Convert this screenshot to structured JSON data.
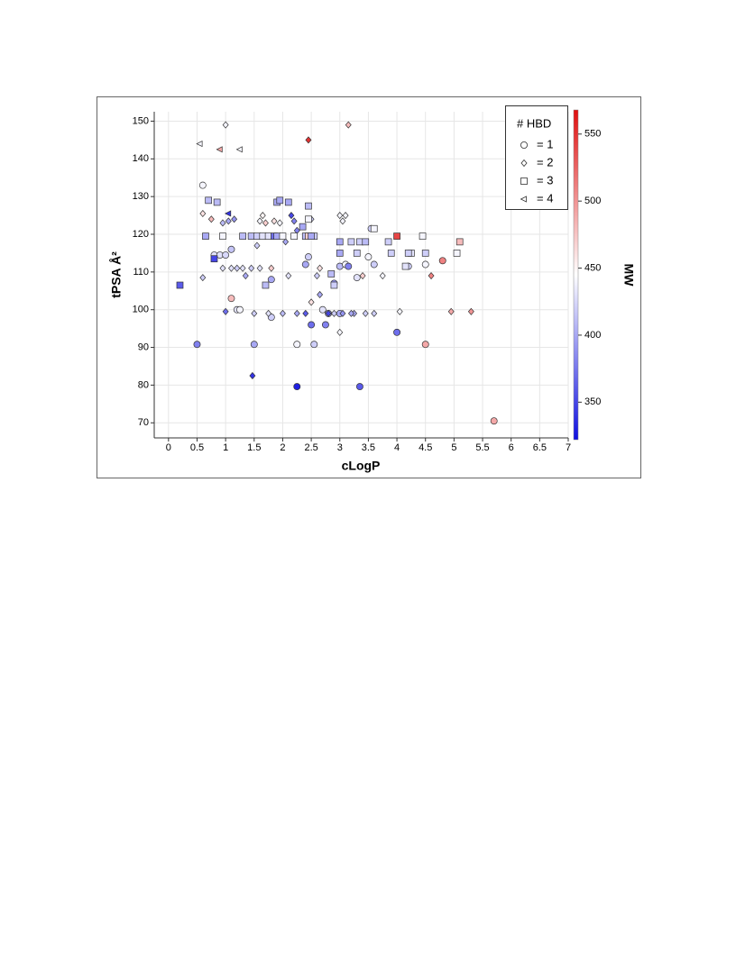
{
  "chart_data": {
    "type": "scatter",
    "x_label": "cLogP",
    "y_label": "tPSA Å²",
    "xlim": [
      -0.25,
      7
    ],
    "xticks": [
      0,
      0.5,
      1,
      1.5,
      2,
      2.5,
      3,
      3.5,
      4,
      4.5,
      5,
      5.5,
      6,
      6.5,
      7
    ],
    "ylim": [
      66,
      152.5
    ],
    "yticks": [
      70,
      80,
      90,
      100,
      110,
      120,
      130,
      140,
      150
    ],
    "grid": true,
    "colorbar": {
      "label": "MW",
      "lim": [
        322,
        568
      ],
      "ticks": [
        350,
        400,
        450,
        500,
        550
      ],
      "colors": [
        "#1010e0",
        "#ffffff",
        "#e01010"
      ]
    },
    "legend_title": "# HBD",
    "legend_position": "upper right",
    "series": [
      {
        "name": "= 1",
        "marker": "circle",
        "x": [
          0.6,
          0.5,
          0.8,
          0.9,
          1.0,
          1.1,
          1.1,
          1.2,
          1.25,
          1.5,
          1.8,
          1.8,
          2.25,
          2.25,
          2.4,
          2.45,
          2.5,
          2.55,
          2.7,
          2.75,
          2.9,
          3.0,
          3.0,
          3.1,
          3.15,
          3.35,
          3.5,
          3.55,
          3.6,
          4.0,
          4.2,
          4.5,
          4.5,
          4.8,
          5.7,
          2.8,
          3.3
        ],
        "values": [
          133,
          90.8,
          114.5,
          114.5,
          114.5,
          116,
          103,
          100,
          100,
          90.8,
          108,
          98,
          90.8,
          79.6,
          112,
          114,
          96,
          90.8,
          100,
          96,
          107,
          111.5,
          99,
          112,
          111.5,
          79.6,
          114,
          121.5,
          112,
          94,
          111.5,
          112,
          90.8,
          113,
          70.5,
          99,
          108.5
        ],
        "mw": [
          440,
          380,
          430,
          430,
          425,
          415,
          480,
          430,
          440,
          400,
          400,
          420,
          440,
          330,
          400,
          420,
          370,
          420,
          430,
          380,
          390,
          410,
          400,
          440,
          380,
          360,
          440,
          420,
          420,
          370,
          420,
          440,
          490,
          510,
          490,
          400,
          430
        ]
      },
      {
        "name": "= 2",
        "marker": "diamond",
        "x": [
          0.6,
          0.6,
          0.75,
          0.95,
          0.95,
          1.0,
          1.0,
          1.05,
          1.1,
          1.15,
          1.2,
          1.3,
          1.35,
          1.45,
          1.5,
          1.55,
          1.6,
          1.65,
          1.7,
          1.6,
          1.75,
          1.8,
          1.85,
          1.95,
          2.0,
          2.05,
          2.1,
          2.15,
          2.2,
          2.25,
          2.25,
          2.4,
          2.45,
          2.5,
          2.5,
          2.6,
          2.65,
          2.65,
          1.47,
          2.8,
          2.9,
          3.0,
          3.0,
          3.05,
          3.1,
          3.15,
          3.25,
          3.4,
          3.45,
          3.6,
          3.75,
          4.05,
          4.6,
          4.95,
          5.3,
          3.05,
          3.2
        ],
        "values": [
          125.5,
          108.5,
          124,
          123,
          111,
          149,
          99.5,
          123.5,
          111,
          124,
          111,
          111,
          109,
          111,
          99,
          117,
          123.5,
          125,
          123,
          111,
          99,
          111,
          123.5,
          123,
          99,
          118,
          109,
          125,
          123.5,
          121,
          99,
          99,
          145,
          102,
          124,
          109,
          104,
          111,
          82.5,
          99,
          99,
          94,
          125,
          123.5,
          125,
          149,
          99,
          109,
          99,
          99,
          109,
          99.5,
          109,
          99.5,
          99.5,
          99,
          99
        ],
        "mw": [
          460,
          420,
          480,
          410,
          430,
          440,
          370,
          400,
          430,
          390,
          420,
          430,
          400,
          420,
          420,
          420,
          440,
          450,
          470,
          430,
          430,
          470,
          460,
          440,
          410,
          400,
          430,
          350,
          380,
          380,
          400,
          360,
          550,
          460,
          420,
          420,
          400,
          460,
          340,
          350,
          420,
          440,
          440,
          440,
          440,
          480,
          400,
          470,
          420,
          420,
          440,
          440,
          510,
          490,
          500,
          390,
          400
        ]
      },
      {
        "name": "= 3",
        "marker": "square",
        "x": [
          0.2,
          0.65,
          0.7,
          0.8,
          0.85,
          0.95,
          1.3,
          1.45,
          1.55,
          1.65,
          1.7,
          1.75,
          1.85,
          1.9,
          1.95,
          1.9,
          2.0,
          2.1,
          2.2,
          2.35,
          2.4,
          2.45,
          2.45,
          2.45,
          2.55,
          2.85,
          2.9,
          3.0,
          3.0,
          3.2,
          3.3,
          3.35,
          3.45,
          3.6,
          3.85,
          3.9,
          4.0,
          4.15,
          4.25,
          4.2,
          4.45,
          4.5,
          5.05,
          5.1,
          2.5
        ],
        "values": [
          106.5,
          119.5,
          129,
          113.5,
          128.5,
          119.5,
          119.5,
          119.5,
          119.5,
          119.5,
          106.5,
          119.5,
          119.5,
          128.5,
          129,
          119.5,
          119.5,
          128.5,
          119.5,
          122,
          119.5,
          127.5,
          124,
          119.5,
          119.5,
          109.5,
          106.5,
          118,
          115,
          118,
          115,
          118,
          118,
          121.5,
          118,
          115,
          119.5,
          111.5,
          115,
          115,
          119.5,
          115,
          115,
          118,
          119.5
        ],
        "mw": [
          360,
          400,
          410,
          350,
          410,
          440,
          410,
          410,
          420,
          430,
          410,
          430,
          370,
          400,
          400,
          400,
          440,
          400,
          440,
          400,
          410,
          410,
          440,
          470,
          420,
          410,
          420,
          400,
          400,
          420,
          420,
          420,
          410,
          440,
          420,
          420,
          540,
          430,
          430,
          420,
          440,
          420,
          440,
          480,
          400
        ]
      },
      {
        "name": "= 4",
        "marker": "triangle-left",
        "x": [
          0.55,
          0.9,
          1.05,
          1.25
        ],
        "values": [
          144,
          142.5,
          125.5,
          142.5
        ],
        "mw": [
          440,
          490,
          340,
          440
        ]
      }
    ]
  }
}
